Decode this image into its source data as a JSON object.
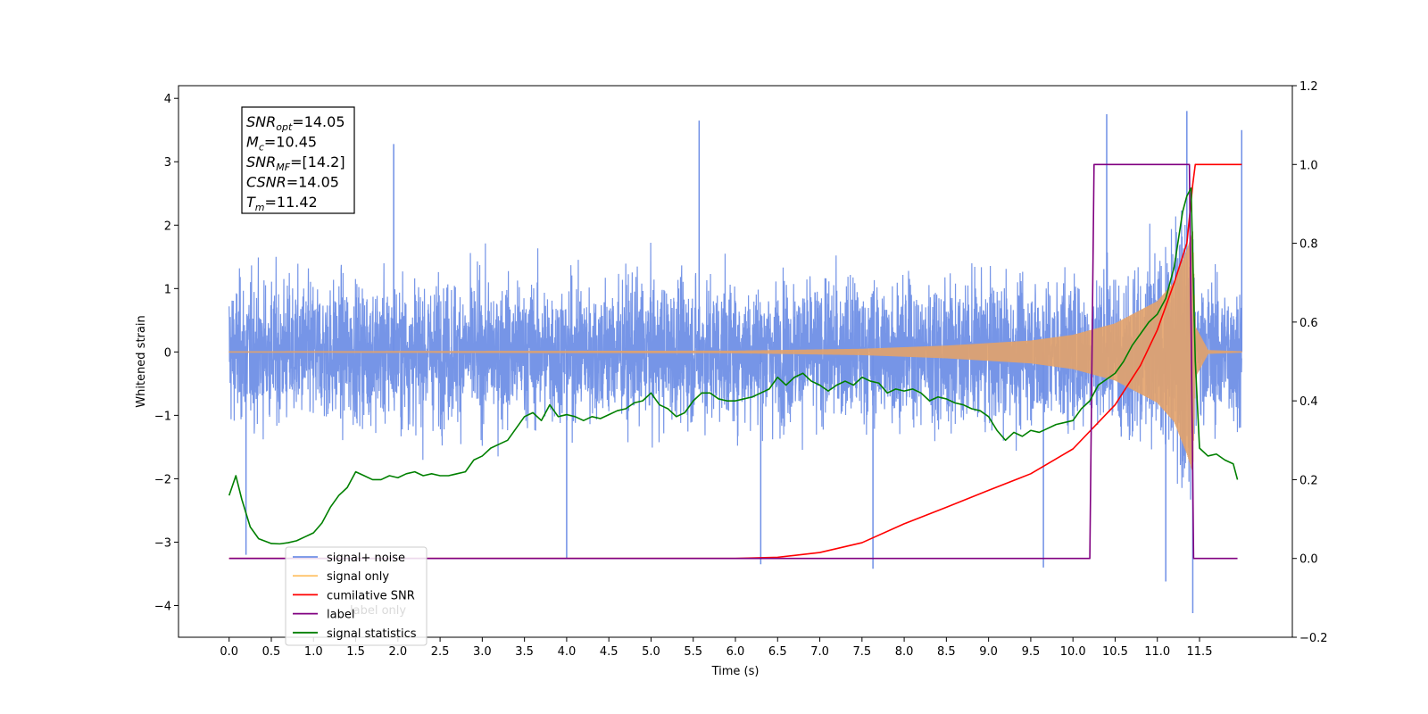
{
  "chart_data": {
    "type": "line",
    "xlabel": "Time (s)",
    "ylabel": "Whitened strain",
    "xlim": [
      -0.6,
      12.6
    ],
    "ylim": [
      -4.5,
      4.2
    ],
    "y2lim": [
      -0.2,
      1.2
    ],
    "x_ticks": [
      0.0,
      0.5,
      1.0,
      1.5,
      2.0,
      2.5,
      3.0,
      3.5,
      4.0,
      4.5,
      5.0,
      5.5,
      6.0,
      6.5,
      7.0,
      7.5,
      8.0,
      8.5,
      9.0,
      9.5,
      10.0,
      10.5,
      11.0,
      11.5
    ],
    "x_tick_labels": [
      "0.0",
      "0.5",
      "1.0",
      "1.5",
      "2.0",
      "2.5",
      "3.0",
      "3.5",
      "4.0",
      "4.5",
      "5.0",
      "5.5",
      "6.0",
      "6.5",
      "7.0",
      "7.5",
      "8.0",
      "8.5",
      "9.0",
      "9.5",
      "10.0",
      "10.5",
      "11.0",
      "11.5"
    ],
    "y_ticks": [
      -4,
      -3,
      -2,
      -1,
      0,
      1,
      2,
      3,
      4
    ],
    "y_tick_labels": [
      "−4",
      "−3",
      "−2",
      "−1",
      "0",
      "1",
      "2",
      "3",
      "4"
    ],
    "y2_ticks": [
      -0.2,
      0.0,
      0.2,
      0.4,
      0.6,
      0.8,
      1.0,
      1.2
    ],
    "y2_tick_labels": [
      "−0.2",
      "0.0",
      "0.2",
      "0.4",
      "0.6",
      "0.8",
      "1.0",
      "1.2"
    ],
    "grid": false,
    "legend_position": "lower-left",
    "series": [
      {
        "name": "signal+ noise",
        "color": "#6f8fe6",
        "axis": "left",
        "x_range": [
          0.0,
          12.0
        ],
        "noise_std": 0.85,
        "peaks": [
          {
            "x": 5.57,
            "y": 3.65
          },
          {
            "x": 10.4,
            "y": 3.75
          },
          {
            "x": 11.35,
            "y": 3.8
          },
          {
            "x": 1.95,
            "y": 3.28
          },
          {
            "x": 11.42,
            "y": -4.12
          },
          {
            "x": 7.63,
            "y": -3.42
          },
          {
            "x": 9.65,
            "y": -3.4
          },
          {
            "x": 11.1,
            "y": -3.62
          },
          {
            "x": 0.2,
            "y": -3.2
          },
          {
            "x": 4.0,
            "y": -3.25
          },
          {
            "x": 6.3,
            "y": -3.35
          },
          {
            "x": 12.0,
            "y": 3.5
          }
        ]
      },
      {
        "name": "signal only",
        "color": "#e3a26a",
        "axis": "left",
        "amplitude_points": [
          [
            0.0,
            0.01
          ],
          [
            6.0,
            0.02
          ],
          [
            7.5,
            0.05
          ],
          [
            8.5,
            0.1
          ],
          [
            9.5,
            0.18
          ],
          [
            10.0,
            0.27
          ],
          [
            10.5,
            0.45
          ],
          [
            11.0,
            0.8
          ],
          [
            11.2,
            1.1
          ],
          [
            11.35,
            1.6
          ],
          [
            11.42,
            1.9
          ],
          [
            11.45,
            0.4
          ],
          [
            11.6,
            0.03
          ],
          [
            12.0,
            0.01
          ]
        ]
      },
      {
        "name": "cumilative SNR",
        "color": "#ff0000",
        "axis": "right",
        "x": [
          0.0,
          5.5,
          6.0,
          6.5,
          7.0,
          7.5,
          8.0,
          8.5,
          9.0,
          9.5,
          10.0,
          10.5,
          10.8,
          11.0,
          11.2,
          11.35,
          11.42,
          11.45,
          12.0
        ],
        "y": [
          0.0,
          0.0,
          0.0,
          0.003,
          0.015,
          0.04,
          0.088,
          0.13,
          0.173,
          0.215,
          0.278,
          0.39,
          0.49,
          0.58,
          0.7,
          0.8,
          0.95,
          1.0,
          1.0
        ]
      },
      {
        "name": "label",
        "color": "#800080",
        "axis": "right",
        "x": [
          0.0,
          10.2,
          10.25,
          11.38,
          11.43,
          11.95
        ],
        "y": [
          0.0,
          0.0,
          1.0,
          1.0,
          0.0,
          0.0
        ]
      },
      {
        "name": "signal statistics",
        "color": "#008000",
        "axis": "right",
        "x": [
          0.0,
          0.08,
          0.15,
          0.25,
          0.35,
          0.5,
          0.6,
          0.7,
          0.8,
          0.9,
          0.95,
          1.0,
          1.1,
          1.2,
          1.3,
          1.4,
          1.5,
          1.6,
          1.7,
          1.8,
          1.9,
          2.0,
          2.1,
          2.2,
          2.3,
          2.4,
          2.5,
          2.6,
          2.7,
          2.8,
          2.9,
          3.0,
          3.1,
          3.2,
          3.3,
          3.4,
          3.5,
          3.6,
          3.7,
          3.8,
          3.9,
          4.0,
          4.1,
          4.2,
          4.3,
          4.4,
          4.5,
          4.6,
          4.7,
          4.8,
          4.9,
          5.0,
          5.1,
          5.2,
          5.3,
          5.4,
          5.5,
          5.6,
          5.7,
          5.8,
          5.9,
          6.0,
          6.1,
          6.2,
          6.3,
          6.4,
          6.5,
          6.6,
          6.7,
          6.8,
          6.9,
          7.0,
          7.1,
          7.2,
          7.3,
          7.4,
          7.5,
          7.6,
          7.7,
          7.8,
          7.9,
          8.0,
          8.1,
          8.2,
          8.3,
          8.4,
          8.5,
          8.6,
          8.7,
          8.8,
          8.9,
          9.0,
          9.1,
          9.2,
          9.3,
          9.4,
          9.5,
          9.6,
          9.7,
          9.8,
          9.9,
          10.0,
          10.1,
          10.2,
          10.3,
          10.4,
          10.5,
          10.6,
          10.7,
          10.8,
          10.9,
          11.0,
          11.1,
          11.2,
          11.3,
          11.35,
          11.4,
          11.45,
          11.5,
          11.6,
          11.7,
          11.8,
          11.9,
          11.95
        ],
        "y": [
          0.16,
          0.21,
          0.15,
          0.08,
          0.05,
          0.038,
          0.037,
          0.04,
          0.045,
          0.055,
          0.06,
          0.065,
          0.09,
          0.13,
          0.16,
          0.18,
          0.22,
          0.21,
          0.2,
          0.2,
          0.21,
          0.205,
          0.215,
          0.22,
          0.21,
          0.215,
          0.21,
          0.21,
          0.215,
          0.22,
          0.25,
          0.26,
          0.28,
          0.29,
          0.3,
          0.33,
          0.36,
          0.37,
          0.35,
          0.39,
          0.36,
          0.365,
          0.36,
          0.35,
          0.36,
          0.355,
          0.365,
          0.375,
          0.38,
          0.395,
          0.4,
          0.42,
          0.39,
          0.38,
          0.36,
          0.37,
          0.4,
          0.42,
          0.42,
          0.405,
          0.4,
          0.4,
          0.405,
          0.41,
          0.42,
          0.43,
          0.46,
          0.44,
          0.46,
          0.47,
          0.45,
          0.44,
          0.425,
          0.44,
          0.45,
          0.44,
          0.46,
          0.45,
          0.445,
          0.42,
          0.43,
          0.425,
          0.43,
          0.42,
          0.4,
          0.41,
          0.405,
          0.395,
          0.39,
          0.38,
          0.375,
          0.36,
          0.325,
          0.3,
          0.32,
          0.31,
          0.325,
          0.32,
          0.33,
          0.34,
          0.345,
          0.35,
          0.38,
          0.4,
          0.44,
          0.455,
          0.47,
          0.5,
          0.54,
          0.57,
          0.6,
          0.62,
          0.66,
          0.74,
          0.88,
          0.92,
          0.94,
          0.5,
          0.28,
          0.26,
          0.265,
          0.25,
          0.24,
          0.2
        ]
      }
    ],
    "legend_labels": [
      "signal+ noise",
      "signal only",
      "cumilative SNR",
      "label",
      "signal statistics"
    ],
    "legend_ghost_label": "label only",
    "info_box": [
      {
        "main": "SNR",
        "sub": "opt",
        "rest": "=14.05"
      },
      {
        "main": "M",
        "sub": "c",
        "rest": "=10.45"
      },
      {
        "main": "SNR",
        "sub": "MF",
        "rest": "=[14.2]"
      },
      {
        "main": "CSNR",
        "sub": "",
        "rest": "=14.05"
      },
      {
        "main": "T",
        "sub": "m",
        "rest": "=11.42"
      }
    ]
  }
}
